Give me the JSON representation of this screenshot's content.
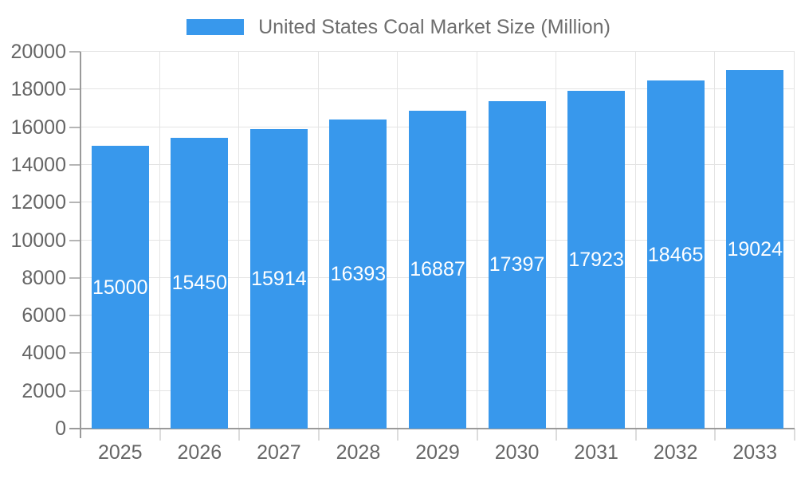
{
  "chart_data": {
    "type": "bar",
    "title": "United States Coal Market Size (Million)",
    "legend": {
      "position": "top",
      "entries": [
        {
          "label": "United States Coal Market Size (Million)",
          "color": "#3898EC"
        }
      ]
    },
    "categories": [
      "2025",
      "2026",
      "2027",
      "2028",
      "2029",
      "2030",
      "2031",
      "2032",
      "2033"
    ],
    "series": [
      {
        "name": "United States Coal Market Size (Million)",
        "values": [
          15000,
          15450,
          15914,
          16393,
          16887,
          17397,
          17923,
          18465,
          19024
        ]
      }
    ],
    "value_labels_inside_bars": true,
    "xlabel": "",
    "ylabel": "",
    "ylim": [
      0,
      20000
    ],
    "ytick_step": 2000,
    "yticks": [
      0,
      2000,
      4000,
      6000,
      8000,
      10000,
      12000,
      14000,
      16000,
      18000,
      20000
    ],
    "grid": true,
    "colors": {
      "bar": "#3898EC",
      "bar_value_text": "#FFFFFF",
      "axis_text": "#666666",
      "legend_text": "#6E6E6E",
      "axis_line": "#9A9A9A",
      "tick": "#B5B5B5",
      "boundary_tick": "#DCDCDC",
      "gridline": "#E4E4E4",
      "background": "#FFFFFF"
    }
  }
}
